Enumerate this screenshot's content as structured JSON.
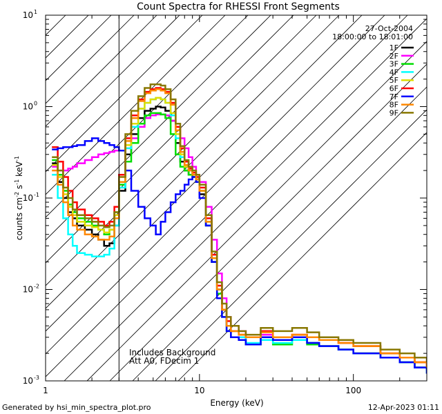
{
  "chart_data": {
    "type": "line",
    "title": "Count Spectra for RHESSI Front Segments",
    "xlabel": "Energy (keV)",
    "ylabel_base": "counts cm",
    "ylabel_exp1": "-2",
    "ylabel_mid1": " s",
    "ylabel_exp2": "-1",
    "ylabel_mid2": " keV",
    "ylabel_exp3": "-1",
    "x_scale": "log",
    "y_scale": "log",
    "xlim": [
      1,
      300
    ],
    "ylim": [
      0.001,
      10
    ],
    "x_ticks": [
      {
        "value": 1,
        "label": "1"
      },
      {
        "value": 10,
        "label": "10"
      },
      {
        "value": 100,
        "label": "100"
      }
    ],
    "y_ticks": [
      {
        "value": 0.001,
        "mant": "10",
        "exp": "-3"
      },
      {
        "value": 0.01,
        "mant": "10",
        "exp": "-2"
      },
      {
        "value": 0.1,
        "mant": "10",
        "exp": "-1"
      },
      {
        "value": 1,
        "mant": "10",
        "exp": "0"
      },
      {
        "value": 10,
        "mant": "10",
        "exp": "1"
      }
    ],
    "shaded_region": {
      "x_from": 1,
      "x_to": 3
    },
    "date": "27-Oct-2004",
    "time_range": "18:00:00 to 18:01:00",
    "annotations": [
      "Includes Background",
      "Att A0, FDecim 1"
    ],
    "series": [
      {
        "name": "1F",
        "color": "#000000",
        "x": [
          1.1,
          1.2,
          1.3,
          1.4,
          1.5,
          1.6,
          1.8,
          2.0,
          2.2,
          2.4,
          2.6,
          2.8,
          3.0,
          3.3,
          3.6,
          4.0,
          4.4,
          4.8,
          5.2,
          5.6,
          6.0,
          6.5,
          7.0,
          7.5,
          8.0,
          8.5,
          9.0,
          9.5,
          10,
          11,
          12,
          13,
          14,
          15,
          16,
          18,
          20,
          25,
          30,
          40,
          50,
          60,
          80,
          100,
          150,
          200,
          250,
          300
        ],
        "y": [
          0.24,
          0.15,
          0.1,
          0.07,
          0.06,
          0.05,
          0.045,
          0.04,
          0.035,
          0.03,
          0.032,
          0.05,
          0.12,
          0.3,
          0.5,
          0.75,
          0.9,
          0.95,
          1.0,
          0.98,
          0.9,
          0.7,
          0.4,
          0.25,
          0.2,
          0.18,
          0.17,
          0.15,
          0.11,
          0.05,
          0.02,
          0.01,
          0.006,
          0.004,
          0.003,
          0.003,
          0.0025,
          0.003,
          0.0028,
          0.003,
          0.0026,
          0.0024,
          0.0022,
          0.002,
          0.0018,
          0.0016,
          0.0014,
          0.0013
        ]
      },
      {
        "name": "2F",
        "color": "#ff00ff",
        "x": [
          1.1,
          1.2,
          1.3,
          1.4,
          1.5,
          1.6,
          1.8,
          2.0,
          2.2,
          2.4,
          2.6,
          2.8,
          3.0,
          3.3,
          3.6,
          4.0,
          4.4,
          4.8,
          5.2,
          5.6,
          6.0,
          6.5,
          7.0,
          7.5,
          8.0,
          8.5,
          9.0,
          9.5,
          10,
          11,
          12,
          13,
          14,
          15,
          16,
          18,
          20,
          25,
          30,
          40,
          50,
          60,
          80,
          100,
          150,
          200,
          250,
          300
        ],
        "y": [
          0.22,
          0.2,
          0.2,
          0.21,
          0.22,
          0.24,
          0.26,
          0.28,
          0.3,
          0.31,
          0.32,
          0.33,
          0.33,
          0.35,
          0.45,
          0.6,
          0.75,
          0.8,
          0.82,
          0.82,
          0.8,
          0.7,
          0.6,
          0.45,
          0.35,
          0.28,
          0.22,
          0.18,
          0.15,
          0.08,
          0.035,
          0.015,
          0.008,
          0.005,
          0.004,
          0.0035,
          0.003,
          0.0032,
          0.003,
          0.0032,
          0.003,
          0.0028,
          0.0026,
          0.0024,
          0.002,
          0.0018,
          0.0016,
          0.0014
        ]
      },
      {
        "name": "3F",
        "color": "#00dd00",
        "x": [
          1.1,
          1.2,
          1.3,
          1.4,
          1.5,
          1.6,
          1.8,
          2.0,
          2.2,
          2.4,
          2.6,
          2.8,
          3.0,
          3.3,
          3.6,
          4.0,
          4.4,
          4.8,
          5.2,
          5.6,
          6.0,
          6.5,
          7.0,
          7.5,
          8.0,
          8.5,
          9.0,
          9.5,
          10,
          11,
          12,
          13,
          14,
          15,
          16,
          18,
          20,
          25,
          30,
          40,
          50,
          60,
          80,
          100,
          150,
          200,
          250,
          300
        ],
        "y": [
          0.26,
          0.18,
          0.12,
          0.085,
          0.07,
          0.06,
          0.055,
          0.05,
          0.045,
          0.04,
          0.045,
          0.07,
          0.14,
          0.25,
          0.4,
          0.65,
          0.8,
          0.85,
          0.85,
          0.82,
          0.75,
          0.5,
          0.3,
          0.22,
          0.2,
          0.18,
          0.17,
          0.15,
          0.12,
          0.05,
          0.02,
          0.009,
          0.005,
          0.0035,
          0.003,
          0.0028,
          0.0025,
          0.0028,
          0.0025,
          0.0028,
          0.0025,
          0.0024,
          0.0022,
          0.002,
          0.0018,
          0.0016,
          0.0014,
          0.0012
        ]
      },
      {
        "name": "4F",
        "color": "#00ffff",
        "x": [
          1.1,
          1.2,
          1.3,
          1.4,
          1.5,
          1.6,
          1.8,
          2.0,
          2.2,
          2.4,
          2.6,
          2.8,
          3.0,
          3.3,
          3.6,
          4.0,
          4.4,
          4.8,
          5.2,
          5.6,
          6.0,
          6.5,
          7.0,
          7.5,
          8.0,
          8.5,
          9.0,
          9.5,
          10,
          11,
          12,
          13,
          14,
          15,
          16,
          18,
          20,
          25,
          30,
          40,
          50,
          60,
          80,
          100,
          150,
          200,
          250,
          300
        ],
        "y": [
          0.18,
          0.1,
          0.06,
          0.04,
          0.03,
          0.025,
          0.024,
          0.023,
          0.023,
          0.024,
          0.028,
          0.05,
          0.13,
          0.35,
          0.6,
          0.95,
          1.1,
          1.2,
          1.25,
          1.2,
          1.1,
          0.8,
          0.45,
          0.28,
          0.22,
          0.2,
          0.18,
          0.16,
          0.12,
          0.055,
          0.022,
          0.01,
          0.006,
          0.004,
          0.003,
          0.003,
          0.0026,
          0.0028,
          0.0026,
          0.0028,
          0.0026,
          0.0024,
          0.0022,
          0.002,
          0.0018,
          0.0016,
          0.0014,
          0.0012
        ]
      },
      {
        "name": "5F",
        "color": "#dddd00",
        "x": [
          1.1,
          1.2,
          1.3,
          1.4,
          1.5,
          1.6,
          1.8,
          2.0,
          2.2,
          2.4,
          2.6,
          2.8,
          3.0,
          3.3,
          3.6,
          4.0,
          4.4,
          4.8,
          5.2,
          5.6,
          6.0,
          6.5,
          7.0,
          7.5,
          8.0,
          8.5,
          9.0,
          9.5,
          10,
          11,
          12,
          13,
          14,
          15,
          16,
          18,
          20,
          25,
          30,
          40,
          50,
          60,
          80,
          100,
          150,
          200,
          250,
          300
        ],
        "y": [
          0.23,
          0.17,
          0.11,
          0.08,
          0.065,
          0.055,
          0.05,
          0.048,
          0.045,
          0.042,
          0.045,
          0.065,
          0.15,
          0.38,
          0.65,
          0.95,
          1.1,
          1.2,
          1.25,
          1.2,
          1.1,
          0.85,
          0.5,
          0.3,
          0.22,
          0.2,
          0.18,
          0.16,
          0.12,
          0.055,
          0.022,
          0.01,
          0.006,
          0.004,
          0.0035,
          0.0032,
          0.003,
          0.0035,
          0.003,
          0.0032,
          0.003,
          0.0028,
          0.0026,
          0.0024,
          0.002,
          0.0018,
          0.0016,
          0.0014
        ]
      },
      {
        "name": "6F",
        "color": "#ff0000",
        "x": [
          1.1,
          1.2,
          1.3,
          1.4,
          1.5,
          1.6,
          1.8,
          2.0,
          2.2,
          2.4,
          2.6,
          2.8,
          3.0,
          3.3,
          3.6,
          4.0,
          4.4,
          4.8,
          5.2,
          5.6,
          6.0,
          6.5,
          7.0,
          7.5,
          8.0,
          8.5,
          9.0,
          9.5,
          10,
          11,
          12,
          13,
          14,
          15,
          16,
          18,
          20,
          25,
          30,
          40,
          50,
          60,
          80,
          100,
          150,
          200,
          250,
          300
        ],
        "y": [
          0.36,
          0.25,
          0.17,
          0.12,
          0.09,
          0.075,
          0.065,
          0.06,
          0.055,
          0.05,
          0.055,
          0.08,
          0.18,
          0.45,
          0.8,
          1.2,
          1.45,
          1.55,
          1.6,
          1.55,
          1.45,
          1.1,
          0.6,
          0.35,
          0.25,
          0.21,
          0.19,
          0.17,
          0.13,
          0.06,
          0.024,
          0.011,
          0.006,
          0.0045,
          0.0035,
          0.0032,
          0.003,
          0.0035,
          0.003,
          0.0032,
          0.003,
          0.0028,
          0.0026,
          0.0024,
          0.002,
          0.0018,
          0.0016,
          0.0014
        ]
      },
      {
        "name": "7F",
        "color": "#0000ff",
        "x": [
          1.1,
          1.2,
          1.3,
          1.4,
          1.5,
          1.6,
          1.8,
          2.0,
          2.2,
          2.4,
          2.6,
          2.8,
          3.0,
          3.3,
          3.6,
          4.0,
          4.4,
          4.8,
          5.2,
          5.6,
          6.0,
          6.5,
          7.0,
          7.5,
          8.0,
          8.5,
          9.0,
          9.5,
          10,
          11,
          12,
          13,
          14,
          15,
          16,
          18,
          20,
          25,
          30,
          40,
          50,
          60,
          80,
          100,
          150,
          200,
          250,
          300
        ],
        "y": [
          0.34,
          0.35,
          0.36,
          0.36,
          0.37,
          0.38,
          0.42,
          0.45,
          0.42,
          0.4,
          0.38,
          0.36,
          0.33,
          0.2,
          0.12,
          0.08,
          0.06,
          0.05,
          0.04,
          0.055,
          0.07,
          0.09,
          0.11,
          0.12,
          0.14,
          0.16,
          0.17,
          0.15,
          0.1,
          0.05,
          0.02,
          0.008,
          0.005,
          0.0035,
          0.003,
          0.0028,
          0.0025,
          0.003,
          0.0028,
          0.003,
          0.0026,
          0.0024,
          0.0022,
          0.002,
          0.0018,
          0.0016,
          0.0014,
          0.0012
        ]
      },
      {
        "name": "8F",
        "color": "#ff8800",
        "x": [
          1.1,
          1.2,
          1.3,
          1.4,
          1.5,
          1.6,
          1.8,
          2.0,
          2.2,
          2.4,
          2.6,
          2.8,
          3.0,
          3.3,
          3.6,
          4.0,
          4.4,
          4.8,
          5.2,
          5.6,
          6.0,
          6.5,
          7.0,
          7.5,
          8.0,
          8.5,
          9.0,
          9.5,
          10,
          11,
          12,
          13,
          14,
          15,
          16,
          18,
          20,
          25,
          30,
          40,
          50,
          60,
          80,
          100,
          150,
          200,
          250,
          300
        ],
        "y": [
          0.2,
          0.14,
          0.09,
          0.065,
          0.05,
          0.045,
          0.04,
          0.038,
          0.035,
          0.035,
          0.038,
          0.06,
          0.15,
          0.42,
          0.75,
          1.15,
          1.4,
          1.5,
          1.55,
          1.5,
          1.4,
          1.05,
          0.55,
          0.32,
          0.23,
          0.2,
          0.18,
          0.16,
          0.12,
          0.055,
          0.022,
          0.01,
          0.006,
          0.004,
          0.0035,
          0.0032,
          0.003,
          0.0034,
          0.003,
          0.0032,
          0.003,
          0.0028,
          0.0026,
          0.0024,
          0.002,
          0.0018,
          0.0016,
          0.0014
        ]
      },
      {
        "name": "9F",
        "color": "#887700",
        "x": [
          1.1,
          1.2,
          1.3,
          1.4,
          1.5,
          1.6,
          1.8,
          2.0,
          2.2,
          2.4,
          2.6,
          2.8,
          3.0,
          3.3,
          3.6,
          4.0,
          4.4,
          4.8,
          5.2,
          5.6,
          6.0,
          6.5,
          7.0,
          7.5,
          8.0,
          8.5,
          9.0,
          9.5,
          10,
          11,
          12,
          13,
          14,
          15,
          16,
          18,
          20,
          25,
          30,
          40,
          50,
          60,
          80,
          100,
          150,
          200,
          250,
          300
        ],
        "y": [
          0.28,
          0.2,
          0.13,
          0.1,
          0.075,
          0.065,
          0.06,
          0.055,
          0.05,
          0.048,
          0.05,
          0.07,
          0.17,
          0.5,
          0.9,
          1.3,
          1.6,
          1.75,
          1.75,
          1.7,
          1.55,
          1.2,
          0.65,
          0.37,
          0.26,
          0.22,
          0.2,
          0.18,
          0.14,
          0.065,
          0.026,
          0.012,
          0.007,
          0.005,
          0.004,
          0.0035,
          0.0032,
          0.0038,
          0.0035,
          0.0038,
          0.0034,
          0.003,
          0.0028,
          0.0026,
          0.0022,
          0.002,
          0.0018,
          0.0016
        ]
      }
    ]
  },
  "footer": {
    "generated_by": "Generated by hsi_min_spectra_plot.pro",
    "timestamp": "12-Apr-2023 01:11"
  }
}
